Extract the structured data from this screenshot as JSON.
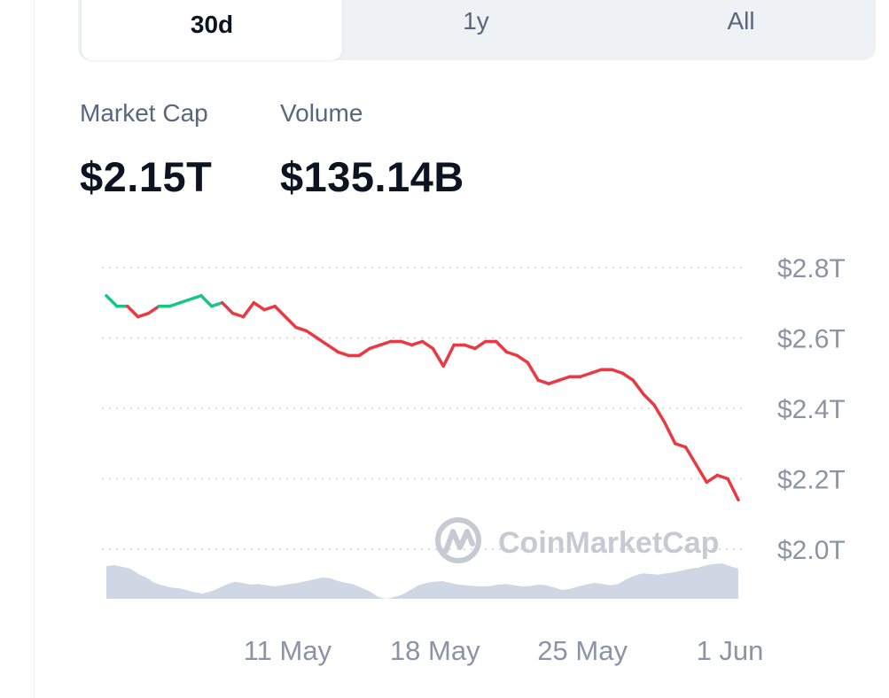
{
  "tabs": [
    {
      "label": "30d",
      "active": true
    },
    {
      "label": "1y",
      "active": false
    },
    {
      "label": "All",
      "active": false
    }
  ],
  "stats": {
    "market_cap_label": "Market Cap",
    "market_cap_value": "$2.15T",
    "volume_label": "Volume",
    "volume_value": "$135.14B"
  },
  "watermark": {
    "text": "CoinMarketCap",
    "icon": "coinmarketcap-logo-icon"
  },
  "colors": {
    "up": "#16c784",
    "down": "#ea3943",
    "volume": "#cfd6e4",
    "grid": "#cfd3da"
  },
  "chart_data": {
    "type": "line",
    "y_unit": "USD trillions",
    "ylim": [
      2.0,
      2.8
    ],
    "y_ticks": [
      {
        "value": 2.8,
        "label": "$2.8T"
      },
      {
        "value": 2.6,
        "label": "$2.6T"
      },
      {
        "value": 2.4,
        "label": "$2.4T"
      },
      {
        "value": 2.2,
        "label": "$2.2T"
      },
      {
        "value": 2.0,
        "label": "$2.0T"
      }
    ],
    "x_ticks": [
      {
        "day": 8.6,
        "label": "11 May"
      },
      {
        "day": 15.6,
        "label": "18 May"
      },
      {
        "day": 22.6,
        "label": "25 May"
      },
      {
        "day": 29.6,
        "label": "1 Jun"
      }
    ],
    "xlim": [
      0,
      30
    ],
    "baseline": 2.69,
    "grid": "dotted horizontal",
    "series": [
      {
        "x": [
          0,
          0.5,
          1,
          1.5,
          2,
          2.5,
          3,
          3.5,
          4,
          4.5,
          5,
          5.5,
          6,
          6.5,
          7,
          7.5,
          8,
          8.5,
          9,
          9.5,
          10,
          10.5,
          11,
          11.5,
          12,
          12.5,
          13,
          13.5,
          14,
          14.5,
          15,
          15.5,
          16,
          16.5,
          17,
          17.5,
          18,
          18.5,
          19,
          19.5,
          20,
          20.5,
          21,
          21.5,
          22,
          22.5,
          23,
          23.5,
          24,
          24.5,
          25,
          25.5,
          26,
          26.5,
          27,
          27.5,
          28,
          28.5,
          29,
          29.5,
          30
        ],
        "values": [
          2.72,
          2.69,
          2.69,
          2.66,
          2.67,
          2.69,
          2.69,
          2.7,
          2.71,
          2.72,
          2.69,
          2.7,
          2.67,
          2.66,
          2.7,
          2.68,
          2.69,
          2.66,
          2.63,
          2.62,
          2.6,
          2.58,
          2.56,
          2.55,
          2.55,
          2.57,
          2.58,
          2.59,
          2.59,
          2.58,
          2.59,
          2.57,
          2.52,
          2.58,
          2.58,
          2.57,
          2.59,
          2.59,
          2.56,
          2.55,
          2.53,
          2.48,
          2.47,
          2.48,
          2.49,
          2.49,
          2.5,
          2.51,
          2.51,
          2.5,
          2.48,
          2.44,
          2.41,
          2.36,
          2.3,
          2.29,
          2.24,
          2.19,
          2.21,
          2.2,
          2.14
        ]
      }
    ],
    "volume_relative": [
      0.92,
      0.95,
      0.9,
      0.85,
      0.7,
      0.6,
      0.45,
      0.38,
      0.32,
      0.3,
      0.25,
      0.18,
      0.15,
      0.2,
      0.3,
      0.4,
      0.48,
      0.45,
      0.4,
      0.42,
      0.38,
      0.35,
      0.38,
      0.42,
      0.45,
      0.5,
      0.55,
      0.6,
      0.58,
      0.5,
      0.45,
      0.4,
      0.3,
      0.2,
      0.05,
      0.0,
      0.05,
      0.12,
      0.25,
      0.38,
      0.45,
      0.48,
      0.5,
      0.45,
      0.4,
      0.38,
      0.36,
      0.35,
      0.36,
      0.4,
      0.42,
      0.38,
      0.35,
      0.36,
      0.4,
      0.38,
      0.32,
      0.25,
      0.28,
      0.35,
      0.4,
      0.45,
      0.42,
      0.38,
      0.42,
      0.55,
      0.65,
      0.72,
      0.7,
      0.68,
      0.72,
      0.75,
      0.8,
      0.85,
      0.88,
      0.95,
      0.98,
      1.0,
      0.92,
      0.85
    ]
  }
}
